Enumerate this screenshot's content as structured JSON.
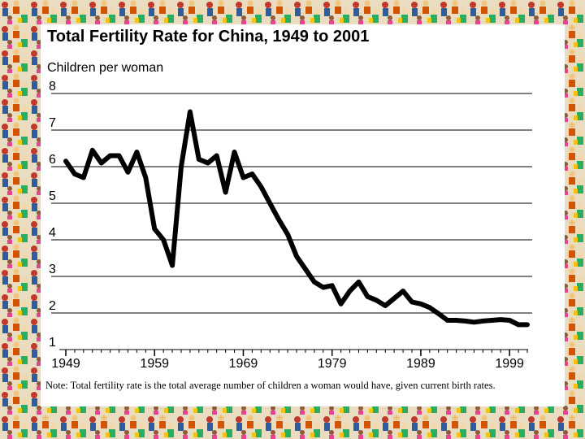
{
  "colors": {
    "line": "#000000",
    "grid": "#000000",
    "panel": "#ffffff"
  },
  "background": {
    "description_icon": "crowd-pattern"
  },
  "chart_data": {
    "type": "line",
    "title": "Total Fertility Rate for China, 1949 to 2001",
    "ylabel": "Children per woman",
    "xlabel": "",
    "note": "Note: Total fertility rate is the total average number of children a woman would have, given current birth rates.",
    "xlim": [
      1949,
      2001
    ],
    "ylim": [
      1,
      8
    ],
    "yticks": [
      1,
      2,
      3,
      4,
      5,
      6,
      7,
      8
    ],
    "xticks": [
      1949,
      1959,
      1969,
      1979,
      1989,
      1999
    ],
    "grid": true,
    "series": [
      {
        "name": "Total fertility rate",
        "x": [
          1949,
          1950,
          1951,
          1952,
          1953,
          1954,
          1955,
          1956,
          1957,
          1958,
          1959,
          1960,
          1961,
          1962,
          1963,
          1964,
          1965,
          1966,
          1967,
          1968,
          1969,
          1970,
          1971,
          1972,
          1973,
          1974,
          1975,
          1976,
          1977,
          1978,
          1979,
          1980,
          1981,
          1982,
          1983,
          1984,
          1985,
          1986,
          1987,
          1988,
          1989,
          1990,
          1991,
          1992,
          1993,
          1994,
          1995,
          1996,
          1997,
          1998,
          1999,
          2000,
          2001
        ],
        "values": [
          6.15,
          5.8,
          5.7,
          6.45,
          6.1,
          6.3,
          6.3,
          5.85,
          6.4,
          5.7,
          4.3,
          4.0,
          3.3,
          6.0,
          7.5,
          6.2,
          6.1,
          6.3,
          5.3,
          6.4,
          5.7,
          5.8,
          5.45,
          5.0,
          4.55,
          4.15,
          3.55,
          3.2,
          2.85,
          2.7,
          2.75,
          2.25,
          2.6,
          2.85,
          2.45,
          2.35,
          2.2,
          2.4,
          2.6,
          2.3,
          2.25,
          2.15,
          1.98,
          1.8,
          1.8,
          1.78,
          1.75,
          1.78,
          1.8,
          1.82,
          1.8,
          1.68,
          1.68
        ]
      }
    ]
  }
}
